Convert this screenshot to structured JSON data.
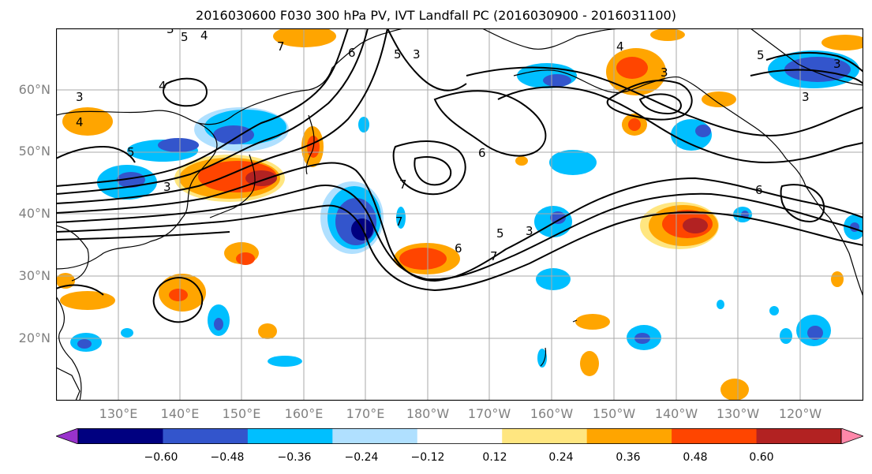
{
  "title": "2016030600 F030 300 hPa PV, IVT Landfall PC (2016030900 - 2016031100)",
  "lat_labels": [
    "60°N",
    "50°N",
    "40°N",
    "30°N",
    "20°N"
  ],
  "lon_labels": [
    "130°E",
    "140°E",
    "150°E",
    "160°E",
    "170°E",
    "180°W",
    "170°W",
    "160°W",
    "150°W",
    "140°W",
    "130°W",
    "120°W"
  ],
  "colorbar": {
    "ticks": [
      "−0.60",
      "−0.48",
      "−0.36",
      "−0.24",
      "−0.12",
      "0.12",
      "0.24",
      "0.36",
      "0.48",
      "0.60"
    ],
    "colors": [
      "#9932cc",
      "#000080",
      "#3355cc",
      "#00bfff",
      "#b0e0ff",
      "#ffffff",
      "#ffe680",
      "#ffa500",
      "#ff4500",
      "#b22222",
      "#ff88aa"
    ]
  },
  "contour_labels": [
    "3",
    "4",
    "4",
    "3",
    "4",
    "5",
    "3",
    "5",
    "6",
    "7",
    "6",
    "5",
    "3",
    "7",
    "7",
    "5",
    "6",
    "3",
    "4",
    "3",
    "7",
    "5",
    "3",
    "3",
    "6"
  ],
  "colors": {
    "pos_light": "#ffe680",
    "pos_mid": "#ffa500",
    "pos_strong": "#ff4500",
    "pos_max": "#b22222",
    "neg_light": "#b0e0ff",
    "neg_mid": "#00bfff",
    "neg_strong": "#3355cc",
    "neg_max": "#000080"
  }
}
